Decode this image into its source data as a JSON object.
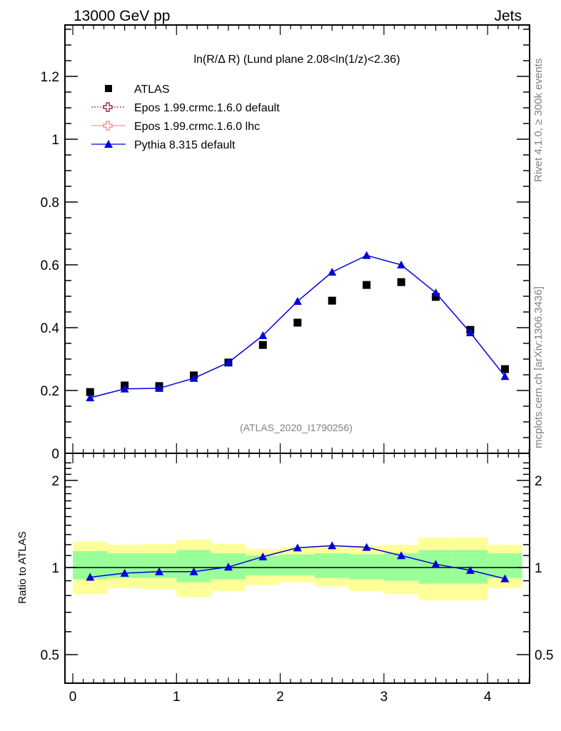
{
  "header": {
    "left": "13000 GeV pp",
    "right": "Jets"
  },
  "side_labels": {
    "rivet": "Rivet 4.1.0, ≥ 300k events",
    "mcplots": "mcplots.cern.ch [arXiv:1306.3436]"
  },
  "colors": {
    "atlas": "#000000",
    "epos_default": "#800033",
    "epos_lhc": "#f08080",
    "pythia": "#0000dd",
    "band_total": "#ffff99",
    "band_stat": "#99ff99"
  },
  "chart_data": [
    {
      "type": "scatter",
      "title": "ln(R/Δ R) (Lund plane 2.08<ln(1/z)<2.36)",
      "watermark": "(ATLAS_2020_I1790256)",
      "xlabel": "",
      "ylabel": "",
      "xlim": [
        0,
        4.4
      ],
      "ylim": [
        0,
        1.36
      ],
      "yticks": [
        0,
        0.2,
        0.4,
        0.6,
        0.8,
        1,
        1.2
      ],
      "ytick_labels": [
        "0",
        "0.2",
        "0.4",
        "0.6",
        "0.8",
        "1",
        "1.2"
      ],
      "legend_position": "top-left",
      "legend": [
        {
          "key": "atlas",
          "label": "ATLAS",
          "marker": "square"
        },
        {
          "key": "epos_default",
          "label": "Epos 1.99.crmc.1.6.0 default",
          "marker": "open-cross",
          "line": "dotted"
        },
        {
          "key": "epos_lhc",
          "label": "Epos 1.99.crmc.1.6.0 lhc",
          "marker": "open-cross",
          "line": "solid"
        },
        {
          "key": "pythia",
          "label": "Pythia 8.315 default",
          "marker": "triangle",
          "line": "solid"
        }
      ],
      "x": [
        0.167,
        0.5,
        0.833,
        1.167,
        1.5,
        1.833,
        2.167,
        2.5,
        2.833,
        3.167,
        3.5,
        3.833,
        4.167
      ],
      "series": [
        {
          "name": "ATLAS",
          "key": "atlas",
          "values": [
            0.195,
            0.216,
            0.214,
            0.248,
            0.289,
            0.345,
            0.416,
            0.486,
            0.536,
            0.545,
            0.498,
            0.393,
            0.268
          ]
        },
        {
          "name": "Pythia 8.315 default",
          "key": "pythia",
          "values": [
            0.177,
            0.205,
            0.207,
            0.239,
            0.289,
            0.375,
            0.484,
            0.577,
            0.63,
            0.6,
            0.511,
            0.384,
            0.245
          ]
        }
      ]
    },
    {
      "type": "line",
      "ylabel": "Ratio to ATLAS",
      "yscale": "log",
      "xlim": [
        0,
        4.4
      ],
      "ylim": [
        0.4,
        2.4
      ],
      "xticks": [
        0,
        1,
        2,
        3,
        4
      ],
      "xtick_labels": [
        "0",
        "1",
        "2",
        "3",
        "4"
      ],
      "yticks": [
        0.5,
        1,
        2
      ],
      "ytick_labels": [
        "0.5",
        "1",
        "2"
      ],
      "bin_edges": [
        0,
        0.333,
        0.667,
        1.0,
        1.333,
        1.667,
        2.0,
        2.333,
        2.667,
        3.0,
        3.333,
        3.667,
        4.0,
        4.333
      ],
      "band_total": {
        "lo": [
          0.81,
          0.85,
          0.84,
          0.79,
          0.83,
          0.87,
          0.89,
          0.86,
          0.83,
          0.81,
          0.77,
          0.77,
          0.85
        ],
        "hi": [
          1.23,
          1.2,
          1.21,
          1.25,
          1.21,
          1.16,
          1.18,
          1.19,
          1.19,
          1.2,
          1.27,
          1.27,
          1.2
        ]
      },
      "band_stat": {
        "lo": [
          0.91,
          0.92,
          0.92,
          0.89,
          0.91,
          0.94,
          0.94,
          0.92,
          0.91,
          0.9,
          0.88,
          0.88,
          0.92
        ],
        "hi": [
          1.14,
          1.12,
          1.12,
          1.15,
          1.12,
          1.1,
          1.11,
          1.12,
          1.11,
          1.12,
          1.15,
          1.15,
          1.12
        ]
      },
      "x": [
        0.167,
        0.5,
        0.833,
        1.167,
        1.5,
        1.833,
        2.167,
        2.5,
        2.833,
        3.167,
        3.5,
        3.833,
        4.167
      ],
      "series": [
        {
          "name": "Pythia 8.315 default",
          "key": "pythia",
          "values": [
            0.926,
            0.956,
            0.968,
            0.968,
            1.004,
            1.09,
            1.17,
            1.19,
            1.175,
            1.1,
            1.027,
            0.978,
            0.915
          ]
        }
      ]
    }
  ]
}
